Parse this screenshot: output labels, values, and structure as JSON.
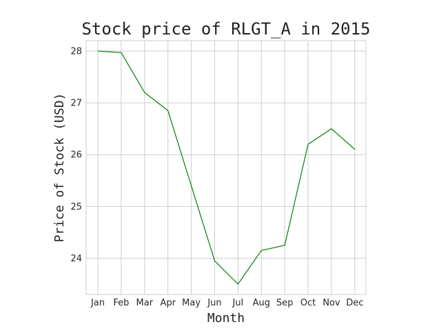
{
  "chart_data": {
    "type": "line",
    "title": "Stock price of RLGT_A in 2015",
    "xlabel": "Month",
    "ylabel": "Price of Stock (USD)",
    "categories": [
      "Jan",
      "Feb",
      "Mar",
      "Apr",
      "May",
      "Jun",
      "Jul",
      "Aug",
      "Sep",
      "Oct",
      "Nov",
      "Dec"
    ],
    "series": [
      {
        "values": [
          28.0,
          27.97,
          27.2,
          26.85,
          25.4,
          23.95,
          23.5,
          24.15,
          24.25,
          26.2,
          26.5,
          26.1
        ],
        "color": "#008000"
      }
    ],
    "yticks": [
      24,
      25,
      26,
      27,
      28
    ],
    "ylim": [
      23.3,
      28.2
    ],
    "grid": true,
    "background": "#ffffff",
    "grid_color": "#cccccc"
  }
}
